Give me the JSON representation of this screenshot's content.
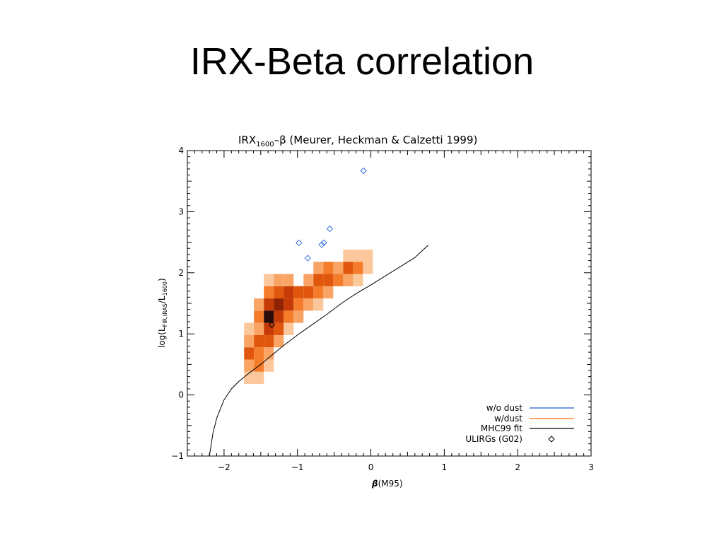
{
  "slide": {
    "title": "IRX-Beta correlation"
  },
  "colors": {
    "without_dust": "#1f5fd0",
    "with_dust": "#ff6a00",
    "fit": "#000000",
    "ulirg_marker": "#3b6fe0",
    "heatmap_scale": [
      "#fde3cc",
      "#fcc79b",
      "#f9a465",
      "#f47c2a",
      "#e0560c",
      "#c53a06",
      "#8f2203",
      "#2a0a0a"
    ]
  },
  "chart_data": {
    "type": "scatter",
    "title_main": "IRX",
    "title_sub": "1600",
    "title_rest": "–β   (Meurer, Heckman & Calzetti 1999)",
    "xlabel_symbol": "β",
    "xlabel_rest": "(M95)",
    "ylabel_pre": "log(L",
    "ylabel_sub": "FIR,IRAS",
    "ylabel_mid": "/L",
    "ylabel_sub2": "1600",
    "ylabel_post": ")",
    "xlim": [
      -2.5,
      3
    ],
    "ylim": [
      -1,
      4
    ],
    "xticks": [
      -2,
      -1,
      0,
      1,
      2,
      3
    ],
    "yticks": [
      -1,
      0,
      1,
      2,
      3,
      4
    ],
    "xtick_labels": [
      "−2",
      "−1",
      "0",
      "1",
      "2",
      "3"
    ],
    "ytick_labels": [
      "−1",
      "0",
      "1",
      "2",
      "3",
      "4"
    ],
    "legend_position": "bottom-right",
    "legend": [
      {
        "label": "w/o dust",
        "kind": "line",
        "color_key": "without_dust"
      },
      {
        "label": "w/dust",
        "kind": "line",
        "color_key": "with_dust"
      },
      {
        "label": "MHC99 fit",
        "kind": "line",
        "color_key": "fit"
      },
      {
        "label": "ULIRGs (G02)",
        "kind": "marker",
        "color_key": "fit"
      }
    ],
    "fit_curve": {
      "name": "MHC99 fit",
      "x": [
        -2.2,
        -2.15,
        -2.1,
        -2.0,
        -1.9,
        -1.8,
        -1.7,
        -1.6,
        -1.5,
        -1.4,
        -1.2,
        -1.0,
        -0.8,
        -0.6,
        -0.4,
        -0.2,
        0.0,
        0.2,
        0.4,
        0.6,
        0.78
      ],
      "y": [
        -1.0,
        -0.62,
        -0.38,
        -0.08,
        0.1,
        0.22,
        0.32,
        0.41,
        0.5,
        0.6,
        0.8,
        0.98,
        1.15,
        1.32,
        1.5,
        1.66,
        1.8,
        1.95,
        2.1,
        2.25,
        2.45
      ]
    },
    "ulirg_points": {
      "name": "ULIRGs (G02)",
      "x": [
        -0.1,
        -0.56,
        -0.98,
        -0.64,
        -0.67,
        -0.86,
        -1.35
      ],
      "y": [
        3.67,
        2.72,
        2.49,
        2.49,
        2.46,
        2.24,
        1.15
      ]
    },
    "heatmap_bin": {
      "dx": 0.135,
      "dy": 0.2
    },
    "heatmap_cells": [
      {
        "x": -1.66,
        "y": 0.28,
        "level": 1
      },
      {
        "x": -1.525,
        "y": 0.28,
        "level": 1
      },
      {
        "x": -1.66,
        "y": 0.48,
        "level": 2
      },
      {
        "x": -1.525,
        "y": 0.48,
        "level": 3
      },
      {
        "x": -1.39,
        "y": 0.48,
        "level": 1
      },
      {
        "x": -1.66,
        "y": 0.68,
        "level": 4
      },
      {
        "x": -1.525,
        "y": 0.68,
        "level": 3
      },
      {
        "x": -1.39,
        "y": 0.68,
        "level": 2
      },
      {
        "x": -1.66,
        "y": 0.88,
        "level": 2
      },
      {
        "x": -1.525,
        "y": 0.88,
        "level": 4
      },
      {
        "x": -1.39,
        "y": 0.88,
        "level": 4
      },
      {
        "x": -1.255,
        "y": 0.88,
        "level": 2
      },
      {
        "x": -1.66,
        "y": 1.08,
        "level": 1
      },
      {
        "x": -1.525,
        "y": 1.08,
        "level": 2
      },
      {
        "x": -1.39,
        "y": 1.08,
        "level": 5
      },
      {
        "x": -1.255,
        "y": 1.08,
        "level": 4
      },
      {
        "x": -1.12,
        "y": 1.08,
        "level": 1
      },
      {
        "x": -1.525,
        "y": 1.28,
        "level": 3
      },
      {
        "x": -1.39,
        "y": 1.28,
        "level": 7
      },
      {
        "x": -1.255,
        "y": 1.28,
        "level": 5
      },
      {
        "x": -1.12,
        "y": 1.28,
        "level": 3
      },
      {
        "x": -0.985,
        "y": 1.28,
        "level": 2
      },
      {
        "x": -1.525,
        "y": 1.48,
        "level": 2
      },
      {
        "x": -1.39,
        "y": 1.48,
        "level": 5
      },
      {
        "x": -1.255,
        "y": 1.48,
        "level": 6
      },
      {
        "x": -1.12,
        "y": 1.48,
        "level": 5
      },
      {
        "x": -0.985,
        "y": 1.48,
        "level": 3
      },
      {
        "x": -0.85,
        "y": 1.48,
        "level": 2
      },
      {
        "x": -0.715,
        "y": 1.48,
        "level": 1
      },
      {
        "x": -1.39,
        "y": 1.68,
        "level": 3
      },
      {
        "x": -1.255,
        "y": 1.68,
        "level": 4
      },
      {
        "x": -1.12,
        "y": 1.68,
        "level": 5
      },
      {
        "x": -0.985,
        "y": 1.68,
        "level": 4
      },
      {
        "x": -0.85,
        "y": 1.68,
        "level": 4
      },
      {
        "x": -0.715,
        "y": 1.68,
        "level": 3
      },
      {
        "x": -0.58,
        "y": 1.68,
        "level": 2
      },
      {
        "x": -1.39,
        "y": 1.88,
        "level": 1
      },
      {
        "x": -1.255,
        "y": 1.88,
        "level": 2
      },
      {
        "x": -1.12,
        "y": 1.88,
        "level": 2
      },
      {
        "x": -0.85,
        "y": 1.88,
        "level": 2
      },
      {
        "x": -0.715,
        "y": 1.88,
        "level": 4
      },
      {
        "x": -0.58,
        "y": 1.88,
        "level": 4
      },
      {
        "x": -0.445,
        "y": 1.88,
        "level": 3
      },
      {
        "x": -0.31,
        "y": 1.88,
        "level": 2
      },
      {
        "x": -0.175,
        "y": 1.88,
        "level": 1
      },
      {
        "x": -0.715,
        "y": 2.08,
        "level": 2
      },
      {
        "x": -0.58,
        "y": 2.08,
        "level": 3
      },
      {
        "x": -0.445,
        "y": 2.08,
        "level": 2
      },
      {
        "x": -0.31,
        "y": 2.08,
        "level": 4
      },
      {
        "x": -0.175,
        "y": 2.08,
        "level": 3
      },
      {
        "x": -0.04,
        "y": 2.08,
        "level": 1
      },
      {
        "x": -0.31,
        "y": 2.28,
        "level": 1
      },
      {
        "x": -0.175,
        "y": 2.28,
        "level": 1
      },
      {
        "x": -0.04,
        "y": 2.28,
        "level": 1
      }
    ]
  }
}
